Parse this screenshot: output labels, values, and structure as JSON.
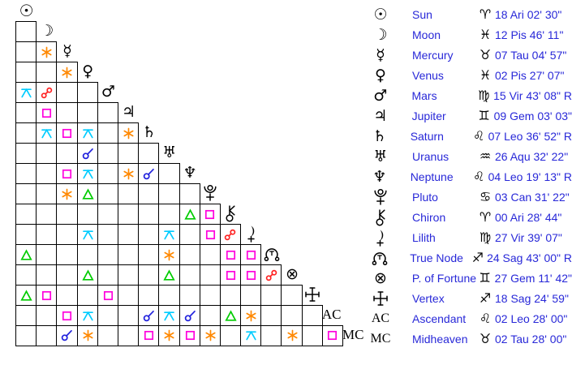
{
  "colors": {
    "background": "#ffffff",
    "grid_line": "#000000",
    "glyph_black": "#000000",
    "label_blue": "#2828d8",
    "aspect_colors": {
      "conjunction": "#2222dd",
      "sextile": "#ff8800",
      "square": "#ff00dd",
      "trine": "#00cc00",
      "opposition": "#ff2222",
      "quincunx": "#00ccff"
    }
  },
  "chart_data": {
    "type": "table",
    "description": "Astrological aspectarian: triangular aspect grid (left) and planetary positions list (right)",
    "points": [
      {
        "id": "sun",
        "name": "Sun",
        "sign": "aries",
        "position": "18 Ari 02' 30\""
      },
      {
        "id": "moon",
        "name": "Moon",
        "sign": "pisces",
        "position": "12 Pis 46' 11\""
      },
      {
        "id": "mercury",
        "name": "Mercury",
        "sign": "taurus",
        "position": "07 Tau 04' 57\""
      },
      {
        "id": "venus",
        "name": "Venus",
        "sign": "pisces",
        "position": "02 Pis 27' 07\""
      },
      {
        "id": "mars",
        "name": "Mars",
        "sign": "virgo",
        "position": "15 Vir 43' 08\" R"
      },
      {
        "id": "jupiter",
        "name": "Jupiter",
        "sign": "gemini",
        "position": "09 Gem 03' 03\""
      },
      {
        "id": "saturn",
        "name": "Saturn",
        "sign": "leo",
        "position": "07 Leo 36' 52\" R"
      },
      {
        "id": "uranus",
        "name": "Uranus",
        "sign": "aquarius",
        "position": "26 Aqu 32' 22\""
      },
      {
        "id": "neptune",
        "name": "Neptune",
        "sign": "leo",
        "position": "04 Leo 19' 13\" R"
      },
      {
        "id": "pluto",
        "name": "Pluto",
        "sign": "cancer",
        "position": "03 Can 31' 22\""
      },
      {
        "id": "chiron",
        "name": "Chiron",
        "sign": "aries",
        "position": "00 Ari 28' 44\""
      },
      {
        "id": "lilith",
        "name": "Lilith",
        "sign": "virgo",
        "position": "27 Vir 39' 07\""
      },
      {
        "id": "truenode",
        "name": "True Node",
        "sign": "sagittarius",
        "position": "24 Sag 43' 00\" R"
      },
      {
        "id": "pfortune",
        "name": "P. of Fortune",
        "sign": "gemini",
        "position": "27 Gem 11' 42\""
      },
      {
        "id": "vertex",
        "name": "Vertex",
        "sign": "sagittarius",
        "position": "18 Sag 24' 59\""
      },
      {
        "id": "ac",
        "name": "Ascendant",
        "sign": "leo",
        "position": "02 Leo 28' 00\""
      },
      {
        "id": "mc",
        "name": "Midheaven",
        "sign": "taurus",
        "position": "02 Tau 28' 00\""
      }
    ],
    "aspects": [
      {
        "between": [
          "moon",
          "mercury"
        ],
        "type": "sextile"
      },
      {
        "between": [
          "mercury",
          "venus"
        ],
        "type": "sextile"
      },
      {
        "between": [
          "sun",
          "mars"
        ],
        "type": "quincunx"
      },
      {
        "between": [
          "moon",
          "mars"
        ],
        "type": "opposition"
      },
      {
        "between": [
          "moon",
          "jupiter"
        ],
        "type": "square"
      },
      {
        "between": [
          "moon",
          "saturn"
        ],
        "type": "quincunx"
      },
      {
        "between": [
          "mercury",
          "saturn"
        ],
        "type": "square"
      },
      {
        "between": [
          "venus",
          "saturn"
        ],
        "type": "quincunx"
      },
      {
        "between": [
          "jupiter",
          "saturn"
        ],
        "type": "sextile"
      },
      {
        "between": [
          "venus",
          "uranus"
        ],
        "type": "conjunction"
      },
      {
        "between": [
          "mercury",
          "neptune"
        ],
        "type": "square"
      },
      {
        "between": [
          "venus",
          "neptune"
        ],
        "type": "quincunx"
      },
      {
        "between": [
          "jupiter",
          "neptune"
        ],
        "type": "sextile"
      },
      {
        "between": [
          "saturn",
          "neptune"
        ],
        "type": "conjunction"
      },
      {
        "between": [
          "mercury",
          "pluto"
        ],
        "type": "sextile"
      },
      {
        "between": [
          "venus",
          "pluto"
        ],
        "type": "trine"
      },
      {
        "between": [
          "neptune",
          "chiron"
        ],
        "type": "trine"
      },
      {
        "between": [
          "pluto",
          "chiron"
        ],
        "type": "square"
      },
      {
        "between": [
          "venus",
          "lilith"
        ],
        "type": "quincunx"
      },
      {
        "between": [
          "uranus",
          "lilith"
        ],
        "type": "quincunx"
      },
      {
        "between": [
          "pluto",
          "lilith"
        ],
        "type": "square"
      },
      {
        "between": [
          "chiron",
          "lilith"
        ],
        "type": "opposition"
      },
      {
        "between": [
          "sun",
          "truenode"
        ],
        "type": "trine"
      },
      {
        "between": [
          "uranus",
          "truenode"
        ],
        "type": "sextile"
      },
      {
        "between": [
          "chiron",
          "truenode"
        ],
        "type": "square"
      },
      {
        "between": [
          "lilith",
          "truenode"
        ],
        "type": "square"
      },
      {
        "between": [
          "venus",
          "pfortune"
        ],
        "type": "trine"
      },
      {
        "between": [
          "uranus",
          "pfortune"
        ],
        "type": "trine"
      },
      {
        "between": [
          "chiron",
          "pfortune"
        ],
        "type": "square"
      },
      {
        "between": [
          "lilith",
          "pfortune"
        ],
        "type": "square"
      },
      {
        "between": [
          "truenode",
          "pfortune"
        ],
        "type": "opposition"
      },
      {
        "between": [
          "sun",
          "vertex"
        ],
        "type": "trine"
      },
      {
        "between": [
          "moon",
          "vertex"
        ],
        "type": "square"
      },
      {
        "between": [
          "mars",
          "vertex"
        ],
        "type": "square"
      },
      {
        "between": [
          "mercury",
          "ac"
        ],
        "type": "square"
      },
      {
        "between": [
          "venus",
          "ac"
        ],
        "type": "quincunx"
      },
      {
        "between": [
          "saturn",
          "ac"
        ],
        "type": "conjunction"
      },
      {
        "between": [
          "uranus",
          "ac"
        ],
        "type": "quincunx"
      },
      {
        "between": [
          "neptune",
          "ac"
        ],
        "type": "conjunction"
      },
      {
        "between": [
          "chiron",
          "ac"
        ],
        "type": "trine"
      },
      {
        "between": [
          "lilith",
          "ac"
        ],
        "type": "sextile"
      },
      {
        "between": [
          "mercury",
          "mc"
        ],
        "type": "conjunction"
      },
      {
        "between": [
          "venus",
          "mc"
        ],
        "type": "sextile"
      },
      {
        "between": [
          "saturn",
          "mc"
        ],
        "type": "square"
      },
      {
        "between": [
          "uranus",
          "mc"
        ],
        "type": "sextile"
      },
      {
        "between": [
          "neptune",
          "mc"
        ],
        "type": "square"
      },
      {
        "between": [
          "pluto",
          "mc"
        ],
        "type": "sextile"
      },
      {
        "between": [
          "lilith",
          "mc"
        ],
        "type": "quincunx"
      },
      {
        "between": [
          "pfortune",
          "mc"
        ],
        "type": "sextile"
      },
      {
        "between": [
          "ac",
          "mc"
        ],
        "type": "square"
      }
    ]
  }
}
